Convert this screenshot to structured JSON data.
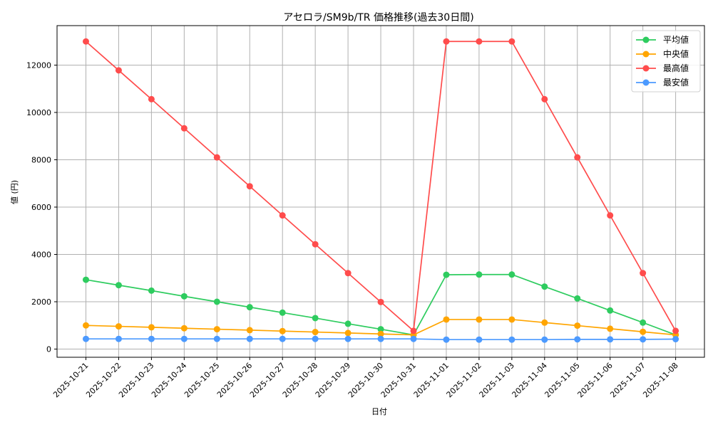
{
  "chart_data": {
    "type": "line",
    "title": "アセロラ/SM9b/TR 価格推移(過去30日間)",
    "xlabel": "日付",
    "ylabel": "値 (円)",
    "ylim": [
      -400,
      13600
    ],
    "yticks": [
      0,
      2000,
      4000,
      6000,
      8000,
      10000,
      12000
    ],
    "grid": true,
    "legend_position": "upper right",
    "categories": [
      "2025-10-21",
      "2025-10-22",
      "2025-10-23",
      "2025-10-24",
      "2025-10-25",
      "2025-10-26",
      "2025-10-27",
      "2025-10-28",
      "2025-10-29",
      "2025-10-30",
      "2025-10-31",
      "2025-11-01",
      "2025-11-02",
      "2025-11-03",
      "2025-11-04",
      "2025-11-05",
      "2025-11-06",
      "2025-11-07",
      "2025-11-08"
    ],
    "series": [
      {
        "name": "平均値",
        "color": "#2ecc5f",
        "values": [
          2930,
          2700,
          2470,
          2230,
          2000,
          1770,
          1540,
          1310,
          1070,
          840,
          600,
          3140,
          3150,
          3150,
          2640,
          2140,
          1630,
          1120,
          600
        ]
      },
      {
        "name": "中央値",
        "color": "#ffa500",
        "values": [
          1000,
          960,
          920,
          880,
          840,
          800,
          760,
          720,
          680,
          640,
          600,
          1250,
          1250,
          1250,
          1120,
          990,
          860,
          730,
          600
        ]
      },
      {
        "name": "最高値",
        "color": "#ff4c4c",
        "values": [
          13000,
          11780,
          10560,
          9330,
          8100,
          6880,
          5650,
          4430,
          3210,
          1990,
          770,
          13000,
          13000,
          13000,
          10560,
          8100,
          5650,
          3210,
          770
        ]
      },
      {
        "name": "最安値",
        "color": "#4c9aff",
        "values": [
          430,
          430,
          430,
          430,
          430,
          430,
          430,
          430,
          430,
          430,
          430,
          400,
          400,
          400,
          400,
          410,
          410,
          410,
          420
        ]
      }
    ]
  }
}
